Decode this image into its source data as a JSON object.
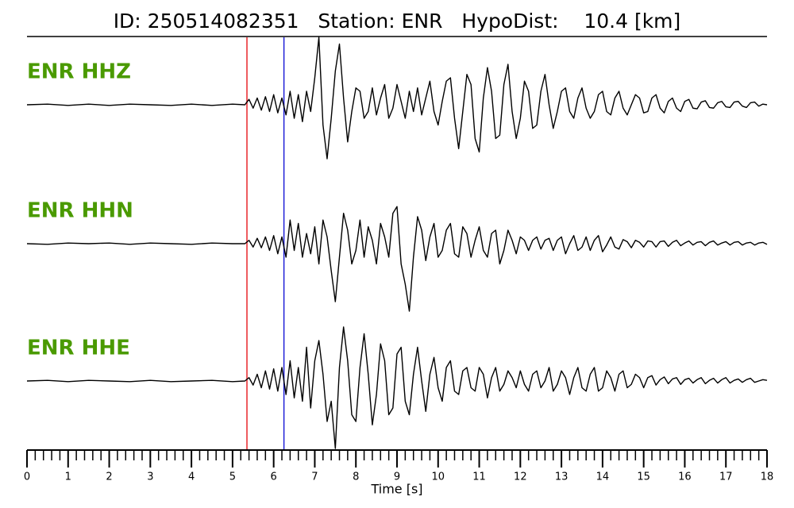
{
  "chart_data": {
    "type": "line",
    "title": "ID: 250514082351   Station: ENR   HypoDist:    10.4 [km]",
    "xlabel": "Time [s]",
    "xlim": [
      0,
      18
    ],
    "ylim": [
      -1,
      1
    ],
    "xticks": [
      0,
      1,
      2,
      3,
      4,
      5,
      6,
      7,
      8,
      9,
      10,
      11,
      12,
      13,
      14,
      15,
      16,
      17,
      18
    ],
    "xminorticks": [
      0.2,
      0.4,
      0.6,
      0.8,
      1.2,
      1.4,
      1.6,
      1.8,
      2.2,
      2.4,
      2.6,
      2.8,
      3.2,
      3.4,
      3.6,
      3.8,
      4.2,
      4.4,
      4.6,
      4.8,
      5.2,
      5.4,
      5.6,
      5.8,
      6.2,
      6.4,
      6.6,
      6.8,
      7.2,
      7.4,
      7.6,
      7.8,
      8.2,
      8.4,
      8.6,
      8.8,
      9.2,
      9.4,
      9.6,
      9.8,
      10.2,
      10.4,
      10.6,
      10.8,
      11.2,
      11.4,
      11.6,
      11.8,
      12.2,
      12.4,
      12.6,
      12.8,
      13.2,
      13.4,
      13.6,
      13.8,
      14.2,
      14.4,
      14.6,
      14.8,
      15.2,
      15.4,
      15.6,
      15.8,
      16.2,
      16.4,
      16.6,
      16.8,
      17.2,
      17.4,
      17.6,
      17.8
    ],
    "vlines": [
      {
        "x": 5.35,
        "color": "#e8262c"
      },
      {
        "x": 6.25,
        "color": "#2020d8"
      }
    ],
    "label_color": "#4a9a00",
    "x": [
      0,
      0.5,
      1,
      1.5,
      2,
      2.5,
      3,
      3.5,
      4,
      4.5,
      5,
      5.3,
      5.4,
      5.5,
      5.6,
      5.7,
      5.8,
      5.9,
      6.0,
      6.1,
      6.2,
      6.3,
      6.4,
      6.5,
      6.6,
      6.7,
      6.8,
      6.9,
      7.0,
      7.1,
      7.2,
      7.3,
      7.4,
      7.5,
      7.6,
      7.7,
      7.8,
      7.9,
      8.0,
      8.1,
      8.2,
      8.3,
      8.4,
      8.5,
      8.6,
      8.7,
      8.8,
      8.9,
      9.0,
      9.1,
      9.2,
      9.3,
      9.4,
      9.5,
      9.6,
      9.7,
      9.8,
      9.9,
      10.0,
      10.1,
      10.2,
      10.3,
      10.4,
      10.5,
      10.6,
      10.7,
      10.8,
      10.9,
      11.0,
      11.1,
      11.2,
      11.3,
      11.4,
      11.5,
      11.6,
      11.7,
      11.8,
      11.9,
      12.0,
      12.1,
      12.2,
      12.3,
      12.4,
      12.5,
      12.6,
      12.7,
      12.8,
      12.9,
      13.0,
      13.1,
      13.2,
      13.3,
      13.4,
      13.5,
      13.6,
      13.7,
      13.8,
      13.9,
      14.0,
      14.1,
      14.2,
      14.3,
      14.4,
      14.5,
      14.6,
      14.7,
      14.8,
      14.9,
      15.0,
      15.1,
      15.2,
      15.3,
      15.4,
      15.5,
      15.6,
      15.7,
      15.8,
      15.9,
      16.0,
      16.1,
      16.2,
      16.3,
      16.4,
      16.5,
      16.6,
      16.7,
      16.8,
      16.9,
      17.0,
      17.1,
      17.2,
      17.3,
      17.4,
      17.5,
      17.6,
      17.7,
      17.8,
      17.9,
      18.0
    ],
    "series": [
      {
        "name": "ENR HHZ",
        "color": "#000000",
        "values": [
          0,
          0.01,
          -0.01,
          0.01,
          -0.01,
          0.01,
          0,
          -0.01,
          0.01,
          -0.01,
          0.01,
          0,
          0.08,
          -0.05,
          0.1,
          -0.08,
          0.12,
          -0.1,
          0.15,
          -0.12,
          0.1,
          -0.15,
          0.2,
          -0.2,
          0.15,
          -0.25,
          0.2,
          -0.1,
          0.4,
          1.0,
          -0.3,
          -0.8,
          -0.2,
          0.5,
          0.9,
          0.1,
          -0.55,
          -0.1,
          0.25,
          0.2,
          -0.2,
          -0.1,
          0.25,
          -0.15,
          0.1,
          0.3,
          -0.2,
          -0.05,
          0.3,
          0.05,
          -0.2,
          0.2,
          -0.1,
          0.25,
          -0.15,
          0.1,
          0.35,
          -0.1,
          -0.3,
          0.05,
          0.35,
          0.4,
          -0.2,
          -0.65,
          -0.1,
          0.45,
          0.3,
          -0.5,
          -0.7,
          0.1,
          0.55,
          0.2,
          -0.5,
          -0.45,
          0.3,
          0.6,
          -0.1,
          -0.5,
          -0.2,
          0.35,
          0.2,
          -0.35,
          -0.3,
          0.2,
          0.45,
          0.0,
          -0.35,
          -0.1,
          0.2,
          0.25,
          -0.1,
          -0.2,
          0.1,
          0.25,
          -0.05,
          -0.2,
          -0.1,
          0.15,
          0.2,
          -0.1,
          -0.15,
          0.1,
          0.2,
          -0.05,
          -0.15,
          0.0,
          0.15,
          0.1,
          -0.12,
          -0.1,
          0.1,
          0.15,
          -0.05,
          -0.12,
          0.05,
          0.1,
          -0.05,
          -0.1,
          0.05,
          0.08,
          -0.05,
          -0.06,
          0.04,
          0.06,
          -0.04,
          -0.05,
          0.03,
          0.05,
          -0.03,
          -0.04,
          0.04,
          0.05,
          -0.02,
          -0.04,
          0.03,
          0.04,
          -0.02,
          0.01,
          0.0
        ]
      },
      {
        "name": "ENR HHN",
        "color": "#000000",
        "values": [
          0,
          -0.01,
          0.01,
          0,
          0.01,
          -0.01,
          0.01,
          0,
          -0.01,
          0.01,
          0,
          0,
          0.05,
          -0.05,
          0.08,
          -0.06,
          0.1,
          -0.1,
          0.12,
          -0.15,
          0.1,
          -0.2,
          0.35,
          -0.1,
          0.3,
          -0.2,
          0.15,
          -0.15,
          0.25,
          -0.3,
          0.35,
          0.1,
          -0.4,
          -0.86,
          -0.2,
          0.45,
          0.2,
          -0.3,
          -0.1,
          0.35,
          -0.2,
          0.25,
          0.05,
          -0.3,
          0.3,
          0.1,
          -0.2,
          0.45,
          0.55,
          -0.3,
          -0.6,
          -1.0,
          -0.2,
          0.4,
          0.2,
          -0.25,
          0.1,
          0.3,
          -0.2,
          -0.1,
          0.2,
          0.3,
          -0.15,
          -0.2,
          0.25,
          0.15,
          -0.2,
          0.05,
          0.25,
          -0.1,
          -0.2,
          0.15,
          0.2,
          -0.3,
          -0.1,
          0.2,
          0.05,
          -0.15,
          0.1,
          0.05,
          -0.1,
          0.05,
          0.1,
          -0.08,
          0.05,
          0.08,
          -0.1,
          0.05,
          0.1,
          -0.15,
          0.0,
          0.12,
          -0.1,
          -0.05,
          0.1,
          -0.1,
          0.05,
          0.12,
          -0.12,
          -0.02,
          0.1,
          -0.05,
          -0.08,
          0.06,
          0.03,
          -0.06,
          0.05,
          0.02,
          -0.05,
          0.04,
          0.03,
          -0.05,
          0.03,
          0.04,
          -0.04,
          0.02,
          0.05,
          -0.03,
          0.01,
          0.04,
          -0.02,
          0.02,
          0.03,
          -0.03,
          0.02,
          0.04,
          -0.02,
          0.01,
          0.03,
          -0.02,
          0.02,
          0.03,
          -0.02,
          0.01,
          0.02,
          -0.02,
          0.01,
          0.02,
          -0.01
        ]
      },
      {
        "name": "ENR HHE",
        "color": "#000000",
        "values": [
          0,
          0.01,
          -0.01,
          0.01,
          0,
          -0.01,
          0.01,
          -0.01,
          0,
          0.01,
          -0.01,
          0,
          0.05,
          -0.06,
          0.1,
          -0.1,
          0.15,
          -0.12,
          0.18,
          -0.15,
          0.2,
          -0.2,
          0.3,
          -0.25,
          0.2,
          -0.3,
          0.5,
          -0.4,
          0.3,
          0.6,
          0.1,
          -0.6,
          -0.3,
          -1.0,
          0.2,
          0.8,
          0.3,
          -0.5,
          -0.6,
          0.2,
          0.7,
          0.1,
          -0.65,
          -0.2,
          0.55,
          0.3,
          -0.5,
          -0.4,
          0.4,
          0.5,
          -0.3,
          -0.5,
          0.1,
          0.5,
          0.0,
          -0.45,
          0.1,
          0.35,
          -0.1,
          -0.3,
          0.2,
          0.3,
          -0.15,
          -0.2,
          0.15,
          0.2,
          -0.1,
          -0.15,
          0.2,
          0.1,
          -0.25,
          0.05,
          0.2,
          -0.15,
          -0.05,
          0.15,
          0.05,
          -0.1,
          0.15,
          -0.05,
          -0.15,
          0.1,
          0.15,
          -0.1,
          0.0,
          0.2,
          -0.15,
          -0.05,
          0.15,
          0.05,
          -0.2,
          0.05,
          0.2,
          -0.1,
          -0.15,
          0.1,
          0.2,
          -0.15,
          -0.1,
          0.15,
          0.05,
          -0.15,
          0.1,
          0.15,
          -0.1,
          -0.05,
          0.1,
          0.05,
          -0.1,
          0.05,
          0.08,
          -0.06,
          0.02,
          0.06,
          -0.04,
          0.03,
          0.05,
          -0.05,
          0.02,
          0.04,
          -0.03,
          0.02,
          0.05,
          -0.04,
          0.01,
          0.04,
          -0.03,
          0.02,
          0.05,
          -0.03,
          0.01,
          0.03,
          -0.02,
          0.02,
          0.04,
          -0.02,
          0.0,
          0.02,
          0.01
        ]
      }
    ]
  }
}
